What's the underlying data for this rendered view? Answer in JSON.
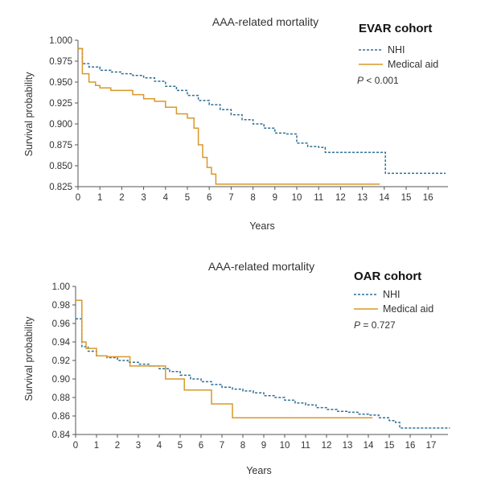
{
  "chart_data": [
    {
      "type": "line",
      "title": "AAA-related mortality",
      "cohort_label": "EVAR cohort",
      "xlabel": "Years",
      "ylabel": "Survival probability",
      "xlim": [
        0,
        17
      ],
      "ylim": [
        0.825,
        1.0
      ],
      "x_ticks": [
        "0",
        "1",
        "2",
        "3",
        "4",
        "5",
        "6",
        "7",
        "8",
        "9",
        "10",
        "11",
        "12",
        "13",
        "14",
        "15",
        "16"
      ],
      "y_ticks": [
        "0.825",
        "0.850",
        "0.875",
        "0.900",
        "0.925",
        "0.950",
        "0.975",
        "1.000"
      ],
      "pvalue": {
        "prefix": "P",
        "text": " < 0.001"
      },
      "series": [
        {
          "name": "NHI",
          "style": "dashed",
          "color": "#2f6f95",
          "points": [
            [
              0,
              0.99
            ],
            [
              0.2,
              0.972
            ],
            [
              0.5,
              0.968
            ],
            [
              1,
              0.964
            ],
            [
              1.5,
              0.962
            ],
            [
              2,
              0.96
            ],
            [
              2.5,
              0.958
            ],
            [
              3,
              0.955
            ],
            [
              3.5,
              0.951
            ],
            [
              4,
              0.945
            ],
            [
              4.5,
              0.94
            ],
            [
              5,
              0.934
            ],
            [
              5.5,
              0.928
            ],
            [
              6,
              0.923
            ],
            [
              6.5,
              0.917
            ],
            [
              7,
              0.911
            ],
            [
              7.5,
              0.905
            ],
            [
              8,
              0.9
            ],
            [
              8.5,
              0.895
            ],
            [
              9,
              0.889
            ],
            [
              9.5,
              0.888
            ],
            [
              10,
              0.877
            ],
            [
              10.5,
              0.873
            ],
            [
              11,
              0.872
            ],
            [
              11.3,
              0.866
            ],
            [
              12,
              0.866
            ],
            [
              13,
              0.866
            ],
            [
              14,
              0.866
            ],
            [
              14.05,
              0.841
            ],
            [
              16.8,
              0.841
            ]
          ]
        },
        {
          "name": "Medical aid",
          "style": "solid",
          "color": "#d9982a",
          "points": [
            [
              0,
              0.99
            ],
            [
              0.2,
              0.96
            ],
            [
              0.5,
              0.95
            ],
            [
              0.8,
              0.946
            ],
            [
              1,
              0.943
            ],
            [
              1.5,
              0.94
            ],
            [
              2,
              0.94
            ],
            [
              2.5,
              0.935
            ],
            [
              3,
              0.93
            ],
            [
              3.5,
              0.927
            ],
            [
              4,
              0.92
            ],
            [
              4.5,
              0.912
            ],
            [
              5,
              0.907
            ],
            [
              5.3,
              0.895
            ],
            [
              5.5,
              0.875
            ],
            [
              5.7,
              0.86
            ],
            [
              5.9,
              0.848
            ],
            [
              6.1,
              0.84
            ],
            [
              6.3,
              0.828
            ],
            [
              13.8,
              0.828
            ]
          ]
        }
      ]
    },
    {
      "type": "line",
      "title": "AAA-related mortality",
      "cohort_label": "OAR cohort",
      "xlabel": "Years",
      "ylabel": "Survival probability",
      "xlim": [
        0,
        18
      ],
      "ylim": [
        0.84,
        1.0
      ],
      "x_ticks": [
        "0",
        "1",
        "2",
        "3",
        "4",
        "5",
        "6",
        "7",
        "8",
        "9",
        "10",
        "11",
        "12",
        "13",
        "14",
        "15",
        "16",
        "17"
      ],
      "y_ticks": [
        "0.84",
        "0.86",
        "0.88",
        "0.90",
        "0.92",
        "0.94",
        "0.96",
        "0.98",
        "1.00"
      ],
      "pvalue": {
        "prefix": "P",
        "text": " = 0.727"
      },
      "series": [
        {
          "name": "NHI",
          "style": "dashed",
          "color": "#2f6f95",
          "points": [
            [
              0,
              0.965
            ],
            [
              0.3,
              0.935
            ],
            [
              0.6,
              0.93
            ],
            [
              1,
              0.925
            ],
            [
              1.5,
              0.923
            ],
            [
              2,
              0.92
            ],
            [
              2.5,
              0.918
            ],
            [
              3,
              0.916
            ],
            [
              3.5,
              0.914
            ],
            [
              4,
              0.911
            ],
            [
              4.5,
              0.908
            ],
            [
              5,
              0.904
            ],
            [
              5.5,
              0.9
            ],
            [
              6,
              0.897
            ],
            [
              6.5,
              0.894
            ],
            [
              7,
              0.891
            ],
            [
              7.5,
              0.889
            ],
            [
              8,
              0.887
            ],
            [
              8.5,
              0.885
            ],
            [
              9,
              0.882
            ],
            [
              9.5,
              0.88
            ],
            [
              10,
              0.877
            ],
            [
              10.5,
              0.874
            ],
            [
              11,
              0.872
            ],
            [
              11.5,
              0.869
            ],
            [
              12,
              0.867
            ],
            [
              12.5,
              0.865
            ],
            [
              13,
              0.864
            ],
            [
              13.5,
              0.862
            ],
            [
              14,
              0.861
            ],
            [
              14.5,
              0.858
            ],
            [
              15,
              0.855
            ],
            [
              15.3,
              0.853
            ],
            [
              15.5,
              0.847
            ],
            [
              17.9,
              0.847
            ]
          ]
        },
        {
          "name": "Medical aid",
          "style": "solid",
          "color": "#d9982a",
          "points": [
            [
              0,
              0.985
            ],
            [
              0.3,
              0.94
            ],
            [
              0.5,
              0.933
            ],
            [
              1,
              0.925
            ],
            [
              1.5,
              0.925
            ],
            [
              1.5,
              0.924
            ],
            [
              2.5,
              0.924
            ],
            [
              2.6,
              0.914
            ],
            [
              4.3,
              0.914
            ],
            [
              4.3,
              0.9
            ],
            [
              5.2,
              0.9
            ],
            [
              5.2,
              0.888
            ],
            [
              6.5,
              0.888
            ],
            [
              6.5,
              0.873
            ],
            [
              7.5,
              0.873
            ],
            [
              7.5,
              0.858
            ],
            [
              14.2,
              0.858
            ]
          ]
        }
      ]
    }
  ]
}
